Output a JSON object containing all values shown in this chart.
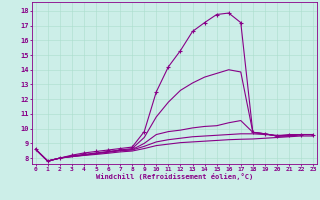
{
  "xlabel": "Windchill (Refroidissement éolien,°C)",
  "bg_color": "#cceee8",
  "line_color": "#880088",
  "grid_color": "#aaddcc",
  "x_ticks": [
    0,
    1,
    2,
    3,
    4,
    5,
    6,
    7,
    8,
    9,
    10,
    11,
    12,
    13,
    14,
    15,
    16,
    17,
    18,
    19,
    20,
    21,
    22,
    23
  ],
  "y_ticks": [
    8,
    9,
    10,
    11,
    12,
    13,
    14,
    15,
    16,
    17,
    18
  ],
  "ylim": [
    7.6,
    18.6
  ],
  "xlim": [
    -0.3,
    23.3
  ],
  "curves": [
    {
      "x": [
        0,
        1,
        2,
        3,
        4,
        5,
        6,
        7,
        8,
        9,
        10,
        11,
        12,
        13,
        14,
        15,
        16,
        17,
        18,
        19,
        20,
        21,
        22,
        23
      ],
      "y": [
        8.6,
        7.8,
        8.0,
        8.2,
        8.35,
        8.45,
        8.55,
        8.65,
        8.75,
        9.8,
        12.5,
        14.2,
        15.3,
        16.6,
        17.2,
        17.75,
        17.85,
        17.2,
        9.75,
        9.65,
        9.5,
        9.6,
        9.6,
        9.6
      ],
      "marker": "+"
    },
    {
      "x": [
        0,
        1,
        2,
        3,
        4,
        5,
        6,
        7,
        8,
        9,
        10,
        11,
        12,
        13,
        14,
        15,
        16,
        17,
        18,
        19,
        20,
        21,
        22,
        23
      ],
      "y": [
        8.6,
        7.8,
        8.0,
        8.15,
        8.25,
        8.35,
        8.45,
        8.55,
        8.65,
        9.4,
        10.8,
        11.8,
        12.6,
        13.1,
        13.5,
        13.75,
        14.0,
        13.85,
        9.75,
        9.65,
        9.5,
        9.5,
        9.6,
        9.6
      ],
      "marker": null
    },
    {
      "x": [
        0,
        1,
        2,
        3,
        4,
        5,
        6,
        7,
        8,
        9,
        10,
        11,
        12,
        13,
        14,
        15,
        16,
        17,
        18,
        19,
        20,
        21,
        22,
        23
      ],
      "y": [
        8.6,
        7.8,
        8.0,
        8.12,
        8.22,
        8.32,
        8.42,
        8.52,
        8.58,
        9.0,
        9.6,
        9.8,
        9.9,
        10.05,
        10.15,
        10.2,
        10.4,
        10.55,
        9.75,
        9.65,
        9.5,
        9.5,
        9.6,
        9.6
      ],
      "marker": null
    },
    {
      "x": [
        0,
        1,
        2,
        3,
        4,
        5,
        6,
        7,
        8,
        9,
        10,
        11,
        12,
        13,
        14,
        15,
        16,
        17,
        18,
        19,
        20,
        21,
        22,
        23
      ],
      "y": [
        8.6,
        7.8,
        8.0,
        8.1,
        8.2,
        8.3,
        8.4,
        8.5,
        8.55,
        8.8,
        9.1,
        9.25,
        9.35,
        9.45,
        9.5,
        9.55,
        9.6,
        9.65,
        9.65,
        9.6,
        9.55,
        9.55,
        9.6,
        9.6
      ],
      "marker": null
    },
    {
      "x": [
        0,
        1,
        2,
        3,
        4,
        5,
        6,
        7,
        8,
        9,
        10,
        11,
        12,
        13,
        14,
        15,
        16,
        17,
        18,
        19,
        20,
        21,
        22,
        23
      ],
      "y": [
        8.6,
        7.8,
        8.0,
        8.1,
        8.18,
        8.25,
        8.33,
        8.42,
        8.48,
        8.65,
        8.85,
        8.95,
        9.05,
        9.1,
        9.15,
        9.2,
        9.25,
        9.28,
        9.3,
        9.35,
        9.4,
        9.45,
        9.5,
        9.5
      ],
      "marker": null
    }
  ]
}
